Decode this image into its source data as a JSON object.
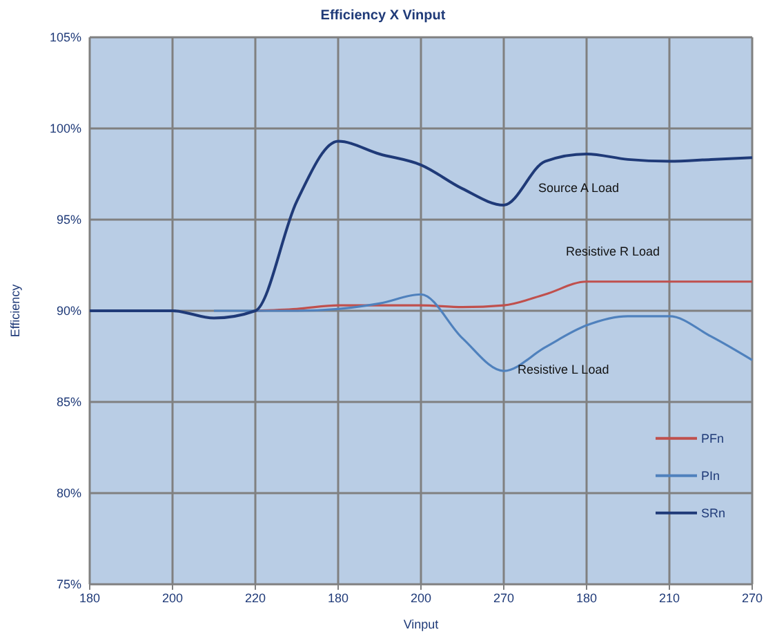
{
  "chart_data": {
    "type": "line",
    "title": "Efficiency X Vinput",
    "xlabel": "Vinput",
    "ylabel": "Efficiency",
    "categories": [
      "180",
      null,
      "200",
      null,
      "220",
      null,
      "180",
      null,
      "200",
      null,
      "270",
      null,
      "180",
      null,
      "210",
      null,
      "270"
    ],
    "ylim": [
      75,
      105
    ],
    "yticks": [
      {
        "value": 75,
        "label": "75%"
      },
      {
        "value": 80,
        "label": "80%"
      },
      {
        "value": 85,
        "label": "85%"
      },
      {
        "value": 90,
        "label": "90%"
      },
      {
        "value": 95,
        "label": "95%"
      },
      {
        "value": 100,
        "label": "100%"
      },
      {
        "value": 105,
        "label": "105%"
      }
    ],
    "grid": true,
    "legend": "right",
    "line_style": "solid",
    "series": [
      {
        "name": "PFn",
        "color": "#c0504d",
        "values": [
          null,
          null,
          null,
          null,
          90,
          90.1,
          90.3,
          90.3,
          90.3,
          90.2,
          90.3,
          90.9,
          91.6,
          91.6,
          91.6,
          91.6,
          91.6
        ]
      },
      {
        "name": "PIn",
        "color": "#4f81bd",
        "values": [
          null,
          null,
          null,
          90,
          90,
          90,
          90.1,
          90.4,
          90.9,
          88.5,
          86.7,
          88,
          89.2,
          89.7,
          89.7,
          88.6,
          87.3
        ]
      },
      {
        "name": "SRn",
        "color": "#1f3a78",
        "values": [
          90,
          90,
          90,
          89.6,
          90,
          96,
          99.3,
          98.6,
          98,
          96.7,
          95.8,
          98.2,
          98.6,
          98.3,
          98.2,
          98.3,
          98.4
        ]
      }
    ],
    "annotations": [
      "Resistive R Load",
      "Resistive L Load",
      "Source A Load"
    ]
  }
}
